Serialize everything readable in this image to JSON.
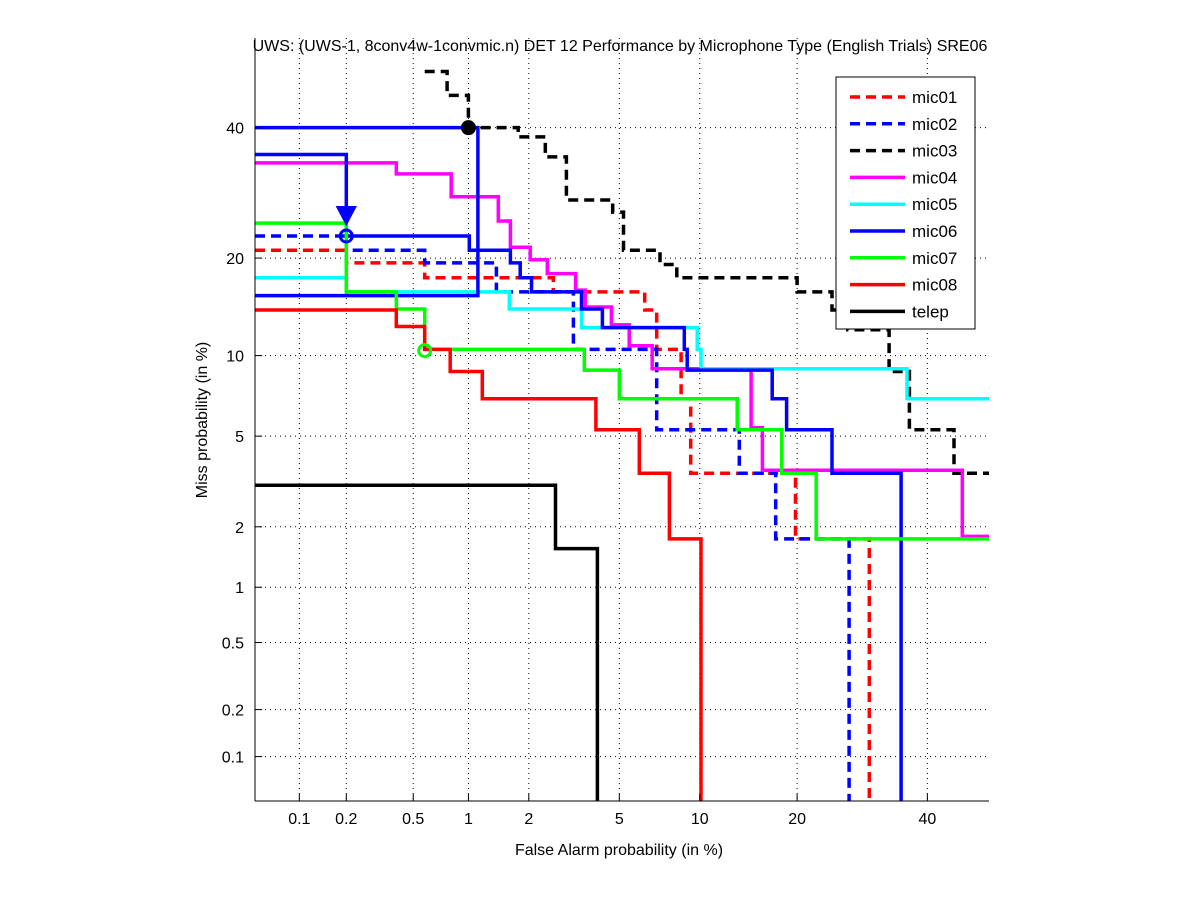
{
  "chart_data": {
    "type": "line",
    "scale": "probit",
    "title": "UWS: (UWS-1, 8conv4w-1convmic.n) DET 12 Performance by Microphone Type (English Trials) SRE06",
    "xlabel": "False Alarm probability (in %)",
    "ylabel": "Miss probability (in %)",
    "xlim": [
      0.05,
      51
    ],
    "ylim": [
      0.05,
      56
    ],
    "xticks": [
      0.1,
      0.2,
      0.5,
      1,
      2,
      5,
      10,
      20,
      40
    ],
    "xtick_labels": [
      "0.1",
      "0.2",
      "0.5",
      "1",
      "2",
      "5",
      "10",
      "20",
      "40"
    ],
    "yticks": [
      0.1,
      0.2,
      0.5,
      1,
      2,
      5,
      10,
      20,
      40
    ],
    "ytick_labels": [
      "0.1",
      "0.2",
      "0.5",
      "1",
      "2",
      "5",
      "10",
      "20",
      "40"
    ],
    "grid": true,
    "legend_position": "top-right",
    "series": [
      {
        "name": "mic01",
        "color": "#ff0000",
        "dashed": true,
        "paths": [
          [
            [
              0.05,
              21
            ],
            [
              0.2,
              21
            ],
            [
              0.2,
              19.4
            ],
            [
              0.58,
              19.4
            ],
            [
              0.58,
              17.6
            ],
            [
              2.6,
              17.6
            ],
            [
              2.6,
              16
            ],
            [
              6.3,
              16
            ],
            [
              6.3,
              14.1
            ],
            [
              7.0,
              14.1
            ],
            [
              7.0,
              10.5
            ],
            [
              8.6,
              10.5
            ],
            [
              8.6,
              7.0
            ],
            [
              9.3,
              7.0
            ],
            [
              9.3,
              3.5
            ],
            [
              19.8,
              3.5
            ],
            [
              19.8,
              1.75
            ],
            [
              30.3,
              1.75
            ],
            [
              30.3,
              0.05
            ]
          ]
        ]
      },
      {
        "name": "mic02",
        "color": "#0000ff",
        "dashed": true,
        "paths": [
          [
            [
              0.05,
              22.9
            ],
            [
              0.2,
              22.9
            ],
            [
              0.2,
              21
            ],
            [
              0.58,
              21
            ],
            [
              0.58,
              19.4
            ],
            [
              1.39,
              19.4
            ],
            [
              1.39,
              16
            ],
            [
              3.2,
              16
            ],
            [
              3.2,
              10.5
            ],
            [
              7.0,
              10.5
            ],
            [
              7.0,
              5.3
            ],
            [
              13.5,
              5.3
            ],
            [
              13.5,
              3.5
            ],
            [
              17.4,
              3.5
            ],
            [
              17.4,
              1.75
            ],
            [
              27.2,
              1.75
            ],
            [
              27.2,
              0.05
            ]
          ]
        ]
      },
      {
        "name": "mic03",
        "color": "#000000",
        "dashed": true,
        "paths": [
          [
            [
              0.58,
              50
            ],
            [
              0.77,
              50
            ],
            [
              0.77,
              45.7
            ],
            [
              1.0,
              45.7
            ],
            [
              1.0,
              40
            ],
            [
              1.78,
              40
            ],
            [
              1.78,
              38.4
            ],
            [
              2.39,
              38.4
            ],
            [
              2.39,
              35
            ],
            [
              2.98,
              35
            ],
            [
              2.98,
              28.1
            ],
            [
              4.7,
              28.1
            ],
            [
              4.7,
              26.3
            ],
            [
              5.2,
              26.3
            ],
            [
              5.2,
              21
            ],
            [
              7.2,
              21
            ],
            [
              7.2,
              19.2
            ],
            [
              8.3,
              19.2
            ],
            [
              8.3,
              17.6
            ],
            [
              20,
              17.6
            ],
            [
              20,
              16
            ],
            [
              24.7,
              16
            ],
            [
              24.7,
              14.1
            ],
            [
              27,
              14.1
            ],
            [
              27,
              12.2
            ],
            [
              33.5,
              12.2
            ],
            [
              33.5,
              8.8
            ],
            [
              36.9,
              8.8
            ],
            [
              36.9,
              5.3
            ],
            [
              44.7,
              5.3
            ],
            [
              44.7,
              3.5
            ],
            [
              51,
              3.5
            ]
          ]
        ]
      },
      {
        "name": "mic04",
        "color": "#ff00ff",
        "dashed": false,
        "paths": [
          [
            [
              0.05,
              34
            ],
            [
              0.4,
              34
            ],
            [
              0.4,
              32.2
            ],
            [
              0.81,
              32.2
            ],
            [
              0.81,
              28.6
            ],
            [
              1.42,
              28.6
            ],
            [
              1.42,
              25
            ],
            [
              1.63,
              25
            ],
            [
              1.63,
              21.4
            ],
            [
              2.03,
              21.4
            ],
            [
              2.03,
              19.8
            ],
            [
              2.44,
              19.8
            ],
            [
              2.44,
              18.1
            ],
            [
              3.27,
              18.1
            ],
            [
              3.27,
              16.2
            ],
            [
              3.6,
              16.2
            ],
            [
              3.6,
              14.4
            ],
            [
              4.64,
              14.4
            ],
            [
              4.64,
              12.65
            ],
            [
              5.48,
              12.65
            ],
            [
              5.48,
              10.8
            ],
            [
              6.73,
              10.8
            ],
            [
              6.73,
              9.0
            ],
            [
              14.7,
              9.0
            ],
            [
              14.7,
              5.4
            ],
            [
              15.9,
              5.4
            ],
            [
              15.9,
              3.6
            ],
            [
              46.2,
              3.6
            ],
            [
              46.2,
              1.8
            ],
            [
              51,
              1.8
            ]
          ]
        ]
      },
      {
        "name": "mic05",
        "color": "#00ffff",
        "dashed": false,
        "paths": [
          [
            [
              0.05,
              17.6
            ],
            [
              0.2,
              17.6
            ],
            [
              0.2,
              16
            ],
            [
              1.61,
              16
            ],
            [
              1.61,
              14.2
            ],
            [
              3.47,
              14.2
            ],
            [
              3.47,
              12.4
            ],
            [
              9.8,
              12.4
            ],
            [
              9.8,
              10.5
            ],
            [
              10.1,
              10.5
            ],
            [
              10.1,
              9.0
            ],
            [
              36.5,
              9.0
            ],
            [
              36.5,
              7.0
            ],
            [
              51,
              7.0
            ]
          ]
        ]
      },
      {
        "name": "mic06",
        "color": "#0000ff",
        "dashed": false,
        "paths": [
          [
            [
              0.05,
              35.4
            ],
            [
              0.2,
              35.4
            ],
            [
              0.2,
              22.9
            ],
            [
              1.01,
              22.9
            ],
            [
              1.01,
              21
            ],
            [
              1.63,
              21
            ],
            [
              1.63,
              19.4
            ],
            [
              1.82,
              19.4
            ],
            [
              1.82,
              17.6
            ],
            [
              2.06,
              17.6
            ],
            [
              2.06,
              16
            ],
            [
              3.47,
              16
            ],
            [
              3.47,
              14.2
            ],
            [
              4.26,
              14.2
            ],
            [
              4.26,
              12.4
            ],
            [
              8.83,
              12.4
            ],
            [
              8.83,
              10.5
            ],
            [
              9.04,
              10.5
            ],
            [
              9.04,
              8.9
            ],
            [
              17,
              8.9
            ],
            [
              17,
              7.0
            ],
            [
              18.7,
              7.0
            ],
            [
              18.7,
              5.3
            ],
            [
              24.7,
              5.3
            ],
            [
              24.7,
              3.5
            ],
            [
              35.5,
              3.5
            ],
            [
              35.5,
              0.05
            ]
          ],
          [
            [
              0.05,
              40
            ],
            [
              1.12,
              40
            ],
            [
              1.12,
              15.6
            ],
            [
              0.05,
              15.6
            ]
          ]
        ]
      },
      {
        "name": "mic07",
        "color": "#00ff00",
        "dashed": false,
        "paths": [
          [
            [
              0.05,
              24.7
            ],
            [
              0.2,
              24.7
            ],
            [
              0.2,
              16
            ],
            [
              0.4,
              16
            ],
            [
              0.4,
              14.2
            ],
            [
              0.58,
              14.2
            ],
            [
              0.58,
              10.5
            ],
            [
              3.57,
              10.5
            ],
            [
              3.57,
              8.9
            ],
            [
              5.0,
              8.9
            ],
            [
              5.0,
              7.0
            ],
            [
              13.3,
              7.0
            ],
            [
              13.3,
              5.3
            ],
            [
              18.1,
              5.3
            ],
            [
              18.1,
              3.5
            ],
            [
              22.5,
              3.5
            ],
            [
              22.5,
              1.75
            ],
            [
              51,
              1.75
            ]
          ]
        ]
      },
      {
        "name": "mic08",
        "color": "#ff0000",
        "dashed": false,
        "paths": [
          [
            [
              0.05,
              14.1
            ],
            [
              0.4,
              14.1
            ],
            [
              0.4,
              12.5
            ],
            [
              0.58,
              12.5
            ],
            [
              0.58,
              10.5
            ],
            [
              0.8,
              10.5
            ],
            [
              0.8,
              8.8
            ],
            [
              1.18,
              8.8
            ],
            [
              1.18,
              7.0
            ],
            [
              4.0,
              7.0
            ],
            [
              4.0,
              5.3
            ],
            [
              6.0,
              5.3
            ],
            [
              6.0,
              3.5
            ],
            [
              7.8,
              3.5
            ],
            [
              7.8,
              1.75
            ],
            [
              10.1,
              1.75
            ],
            [
              10.1,
              0.05
            ]
          ]
        ]
      },
      {
        "name": "telep",
        "color": "#000000",
        "dashed": false,
        "paths": [
          [
            [
              0.05,
              3.1
            ],
            [
              2.66,
              3.1
            ],
            [
              2.66,
              1.57
            ],
            [
              4.06,
              1.57
            ],
            [
              4.06,
              0.05
            ]
          ]
        ]
      }
    ],
    "markers": [
      {
        "series": "mic03",
        "x": 1.0,
        "y": 40,
        "color": "#000000",
        "filled": true
      },
      {
        "series": "mic06",
        "x": 0.2,
        "y": 22.9,
        "color": "#0000ff",
        "filled": false,
        "arrow_from_y": 35.4
      },
      {
        "series": "mic07",
        "x": 0.58,
        "y": 10.4,
        "color": "#00ff00",
        "filled": false
      }
    ]
  }
}
